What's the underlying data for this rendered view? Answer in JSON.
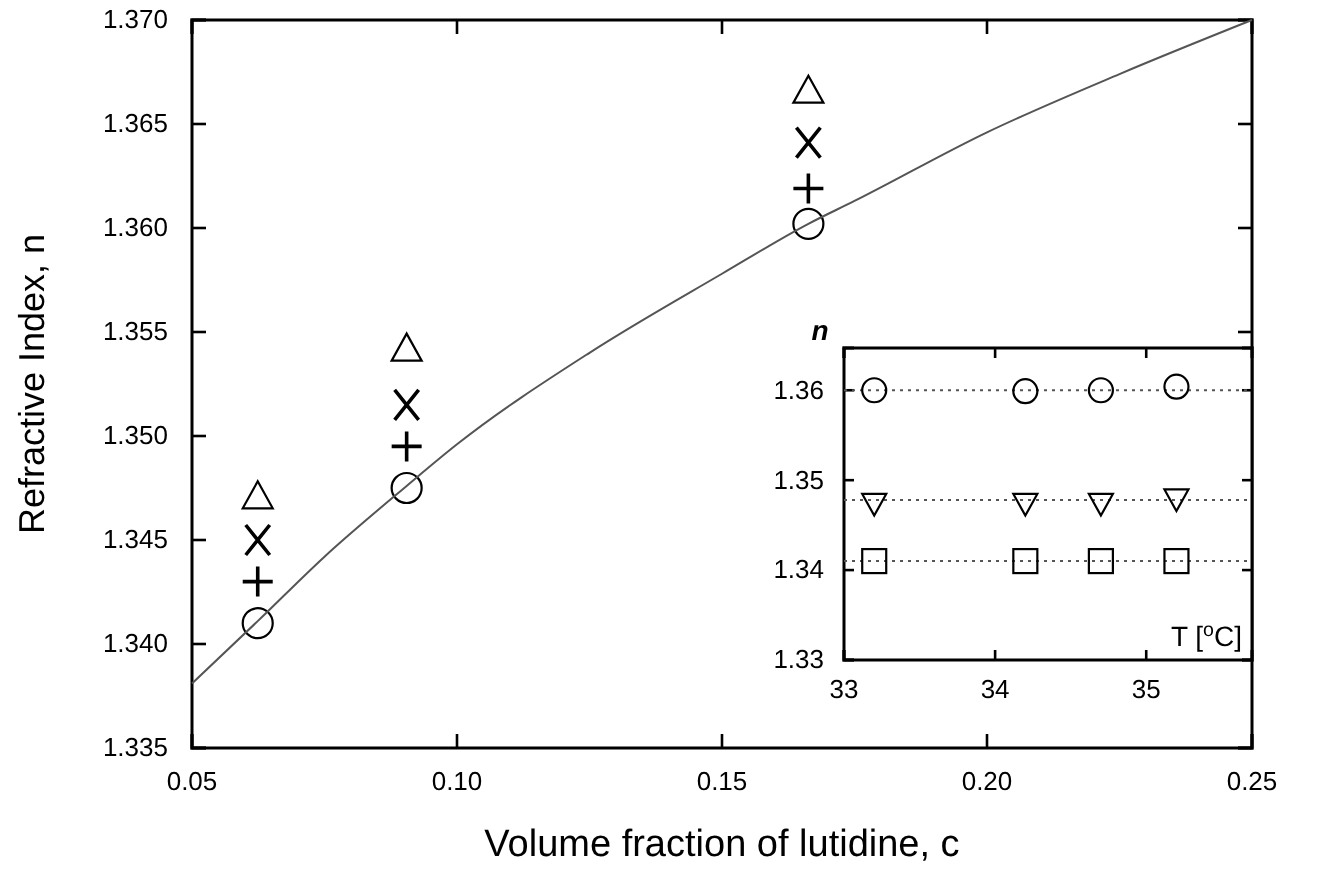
{
  "chart_data": [
    {
      "type": "scatter",
      "xlabel": "Volume fraction of lutidine, c",
      "ylabel": "Refractive Index, n",
      "xlim": [
        0.05,
        0.25
      ],
      "ylim": [
        1.335,
        1.37
      ],
      "xticks": [
        {
          "value": 0.05,
          "label": "0.05"
        },
        {
          "value": 0.1,
          "label": "0.10"
        },
        {
          "value": 0.15,
          "label": "0.15"
        },
        {
          "value": 0.2,
          "label": "0.20"
        },
        {
          "value": 0.25,
          "label": "0.25"
        }
      ],
      "yticks": [
        {
          "value": 1.335,
          "label": "1.335"
        },
        {
          "value": 1.34,
          "label": "1.340"
        },
        {
          "value": 1.345,
          "label": "1.345"
        },
        {
          "value": 1.35,
          "label": "1.350"
        },
        {
          "value": 1.355,
          "label": "1.355"
        },
        {
          "value": 1.36,
          "label": "1.360"
        },
        {
          "value": 1.365,
          "label": "1.365"
        },
        {
          "value": 1.37,
          "label": "1.370"
        }
      ],
      "grid": false,
      "series": [
        {
          "type": "scatter",
          "marker": "circle",
          "color": "#000000",
          "x": [
            0.0624,
            0.0905,
            0.1663
          ],
          "values": [
            1.341,
            1.3475,
            1.3602
          ]
        },
        {
          "type": "scatter",
          "marker": "plus",
          "color": "#000000",
          "x": [
            0.0624,
            0.0905,
            0.1663
          ],
          "values": [
            1.343,
            1.3495,
            1.3619
          ]
        },
        {
          "type": "scatter",
          "marker": "cross",
          "color": "#000000",
          "x": [
            0.0624,
            0.0905,
            0.1663
          ],
          "values": [
            1.345,
            1.3515,
            1.3641
          ]
        },
        {
          "type": "scatter",
          "marker": "triangle",
          "color": "#000000",
          "x": [
            0.0624,
            0.0905,
            0.1663
          ],
          "values": [
            1.3471,
            1.3542,
            1.3666
          ]
        },
        {
          "type": "line",
          "marker": "none",
          "line_style": "solid",
          "color": "#555555",
          "x": [
            0.05,
            0.0624,
            0.075,
            0.0905,
            0.1,
            0.125,
            0.15,
            0.1663,
            0.175,
            0.2,
            0.225,
            0.25
          ],
          "values": [
            1.3381,
            1.3411,
            1.3442,
            1.3476,
            1.3496,
            1.354,
            1.3578,
            1.3602,
            1.3613,
            1.3646,
            1.3674,
            1.37
          ]
        }
      ]
    },
    {
      "type": "scatter",
      "xlabel": "T [$^{o}$C]",
      "ylabel": "n",
      "xlim": [
        33,
        35.7
      ],
      "ylim": [
        1.33,
        1.3647
      ],
      "xticks": [
        33,
        34,
        35
      ],
      "yticks": [
        1.33,
        1.34,
        1.35,
        1.36
      ],
      "grid": false,
      "ref_lines": [
        {
          "axis": "y",
          "value": 1.36,
          "color": "#555555",
          "line_style": "dotted"
        },
        {
          "axis": "y",
          "value": 1.3478,
          "color": "#555555",
          "line_style": "dotted"
        },
        {
          "axis": "y",
          "value": 1.341,
          "color": "#555555",
          "line_style": "dotted"
        }
      ],
      "series": [
        {
          "type": "scatter",
          "marker": "circle",
          "color": "#000000",
          "x": [
            33.2,
            34.2,
            34.7,
            35.2
          ],
          "values": [
            1.36,
            1.3599,
            1.36,
            1.3604
          ]
        },
        {
          "type": "scatter",
          "marker": "triangle-down",
          "color": "#000000",
          "x": [
            33.2,
            34.2,
            34.7,
            35.2
          ],
          "values": [
            1.3474,
            1.3474,
            1.3474,
            1.3479
          ]
        },
        {
          "type": "scatter",
          "marker": "square",
          "color": "#000000",
          "x": [
            33.2,
            34.2,
            34.7,
            35.2
          ],
          "values": [
            1.341,
            1.341,
            1.341,
            1.341
          ]
        }
      ]
    }
  ]
}
